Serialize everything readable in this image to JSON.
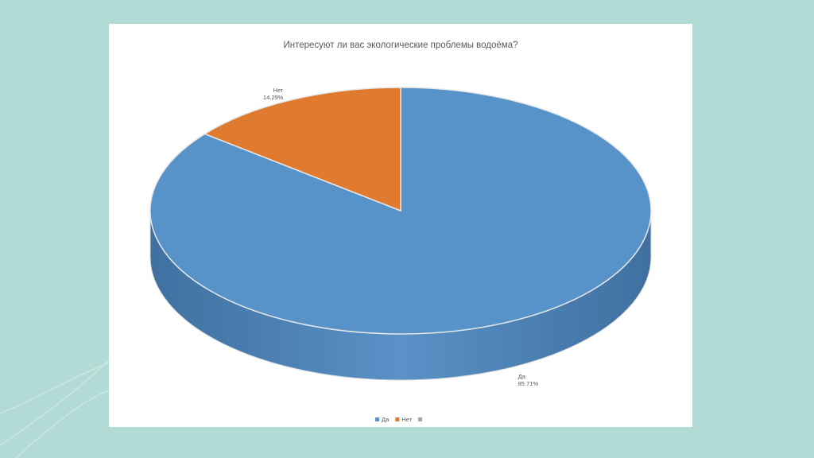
{
  "chart_data": {
    "type": "pie",
    "title": "Интересуют ли вас экологические проблемы водоёма?",
    "categories": [
      "Да",
      "Нет",
      null
    ],
    "values": [
      85.71,
      14.29,
      null
    ],
    "value_labels": [
      "85.71%",
      "14.29%",
      null
    ],
    "colors": [
      "#5793c9",
      "#e07a2f",
      "#a5a5a5"
    ],
    "legend": "bottom"
  }
}
